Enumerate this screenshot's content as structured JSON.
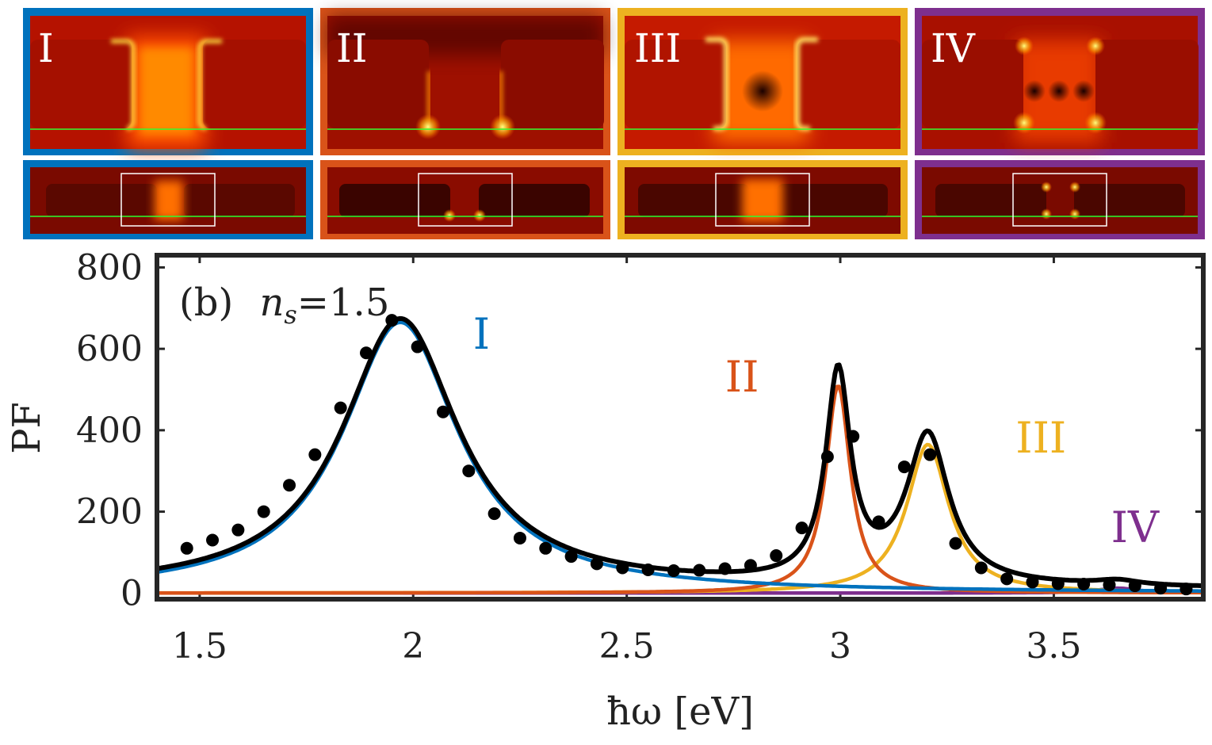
{
  "panels": [
    {
      "label": "I",
      "color": "#0072bd",
      "mode": "symmetric"
    },
    {
      "label": "II",
      "color": "#d95319",
      "mode": "antisymmetric"
    },
    {
      "label": "III",
      "color": "#edb120",
      "mode": "center-node"
    },
    {
      "label": "IV",
      "color": "#7e2f8e",
      "mode": "multi-node"
    }
  ],
  "chart_data": {
    "type": "line",
    "annotation": "(b)",
    "annotation_math": {
      "var": "n",
      "sub": "s",
      "eq": "=1.5"
    },
    "xlabel": "ħω [eV]",
    "ylabel": "PF",
    "xlim": [
      1.4,
      3.85
    ],
    "ylim": [
      -15,
      830
    ],
    "xticks": [
      1.5,
      2,
      2.5,
      3,
      3.5
    ],
    "xtick_labels": [
      "1.5",
      "2",
      "2.5",
      "3",
      "3.5"
    ],
    "yticks": [
      0,
      200,
      400,
      600,
      800
    ],
    "ytick_labels": [
      "0",
      "200",
      "400",
      "600",
      "800"
    ],
    "modes": [
      {
        "name": "I",
        "color": "#0072bd",
        "x0": 1.97,
        "gamma": 0.33,
        "amp": 665,
        "label_at": [
          2.16,
          600
        ]
      },
      {
        "name": "II",
        "color": "#d95319",
        "x0": 2.995,
        "gamma": 0.07,
        "amp": 510,
        "label_at": [
          2.77,
          495
        ]
      },
      {
        "name": "III",
        "color": "#edb120",
        "x0": 3.205,
        "gamma": 0.12,
        "amp": 365,
        "label_at": [
          3.47,
          345
        ]
      },
      {
        "name": "IV",
        "color": "#7e2f8e",
        "x0": 3.65,
        "gamma": 0.12,
        "amp": 12,
        "label_at": [
          3.69,
          125
        ]
      }
    ],
    "series": [
      {
        "name": "total",
        "color": "#000000"
      },
      {
        "name": "I",
        "color": "#0072bd"
      },
      {
        "name": "II",
        "color": "#d95319"
      },
      {
        "name": "III",
        "color": "#edb120"
      },
      {
        "name": "IV",
        "color": "#7e2f8e"
      }
    ],
    "points": {
      "x": [
        1.47,
        1.53,
        1.59,
        1.65,
        1.71,
        1.77,
        1.83,
        1.89,
        1.95,
        2.01,
        2.07,
        2.13,
        2.19,
        2.25,
        2.31,
        2.37,
        2.43,
        2.49,
        2.55,
        2.61,
        2.67,
        2.73,
        2.79,
        2.85,
        2.91,
        2.97,
        3.03,
        3.09,
        3.15,
        3.21,
        3.27,
        3.33,
        3.39,
        3.45,
        3.51,
        3.57,
        3.63,
        3.69,
        3.75,
        3.81
      ],
      "y": [
        110,
        130,
        155,
        200,
        265,
        340,
        455,
        590,
        670,
        605,
        445,
        300,
        195,
        135,
        110,
        90,
        72,
        62,
        57,
        55,
        56,
        60,
        68,
        92,
        160,
        335,
        385,
        175,
        310,
        340,
        122,
        62,
        35,
        27,
        23,
        22,
        20,
        18,
        12,
        10
      ]
    }
  }
}
